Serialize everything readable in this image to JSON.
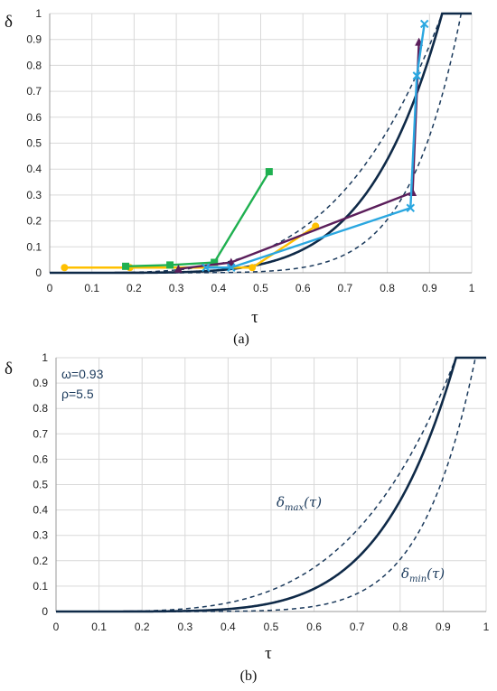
{
  "captions": {
    "a": "(a)",
    "b": "(b)"
  },
  "params": {
    "omega": "ω=0.93",
    "rho": "ρ=5.5"
  },
  "labels": {
    "delta_max": {
      "sym": "δ",
      "sub": "max",
      "arg": "(τ)"
    },
    "delta_min": {
      "sym": "δ",
      "sub": "min",
      "arg": "(τ)"
    }
  },
  "chart_data": [
    {
      "type": "line",
      "panel": "a",
      "title": "",
      "xlabel": "τ",
      "ylabel": "δ",
      "xlim": [
        0,
        1
      ],
      "ylim": [
        0,
        1
      ],
      "xticks": [
        "0",
        "0.1",
        "0.2",
        "0.3",
        "0.4",
        "0.5",
        "0.6",
        "0.7",
        "0.8",
        "0.9",
        "1"
      ],
      "yticks": [
        "0",
        "0.1",
        "0.2",
        "0.3",
        "0.4",
        "0.5",
        "0.6",
        "0.7",
        "0.8",
        "0.9",
        "1"
      ],
      "grid": true,
      "model_curves": {
        "omega": 0.93,
        "rho": 5.5,
        "dashed_bounds": true
      },
      "series": [
        {
          "color": "#ffc000",
          "marker": "circle",
          "points": [
            [
              0.035,
              0.02
            ],
            [
              0.19,
              0.02
            ],
            [
              0.48,
              0.02
            ],
            [
              0.63,
              0.18
            ]
          ]
        },
        {
          "color": "#1fb050",
          "marker": "square",
          "points": [
            [
              0.18,
              0.025
            ],
            [
              0.285,
              0.03
            ],
            [
              0.39,
              0.04
            ],
            [
              0.52,
              0.39
            ]
          ]
        },
        {
          "color": "#5b1e5b",
          "marker": "triangle",
          "points": [
            [
              0.305,
              0.015
            ],
            [
              0.43,
              0.04
            ],
            [
              0.86,
              0.31
            ],
            [
              0.875,
              0.89
            ]
          ]
        },
        {
          "color": "#2aa7e0",
          "marker": "cross",
          "points": [
            [
              0.37,
              0.02
            ],
            [
              0.43,
              0.02
            ],
            [
              0.855,
              0.25
            ],
            [
              0.87,
              0.76
            ],
            [
              0.888,
              0.96
            ]
          ]
        }
      ]
    },
    {
      "type": "line",
      "panel": "b",
      "title": "",
      "xlabel": "τ",
      "ylabel": "δ",
      "xlim": [
        0,
        1
      ],
      "ylim": [
        0,
        1
      ],
      "xticks": [
        "0",
        "0.1",
        "0.2",
        "0.3",
        "0.4",
        "0.5",
        "0.6",
        "0.7",
        "0.8",
        "0.9",
        "1"
      ],
      "yticks": [
        "0",
        "0.1",
        "0.2",
        "0.3",
        "0.4",
        "0.5",
        "0.6",
        "0.7",
        "0.8",
        "0.9",
        "1"
      ],
      "grid": true,
      "model_curves": {
        "omega": 0.93,
        "rho": 5.5,
        "dashed_bounds": true
      },
      "series": []
    }
  ]
}
